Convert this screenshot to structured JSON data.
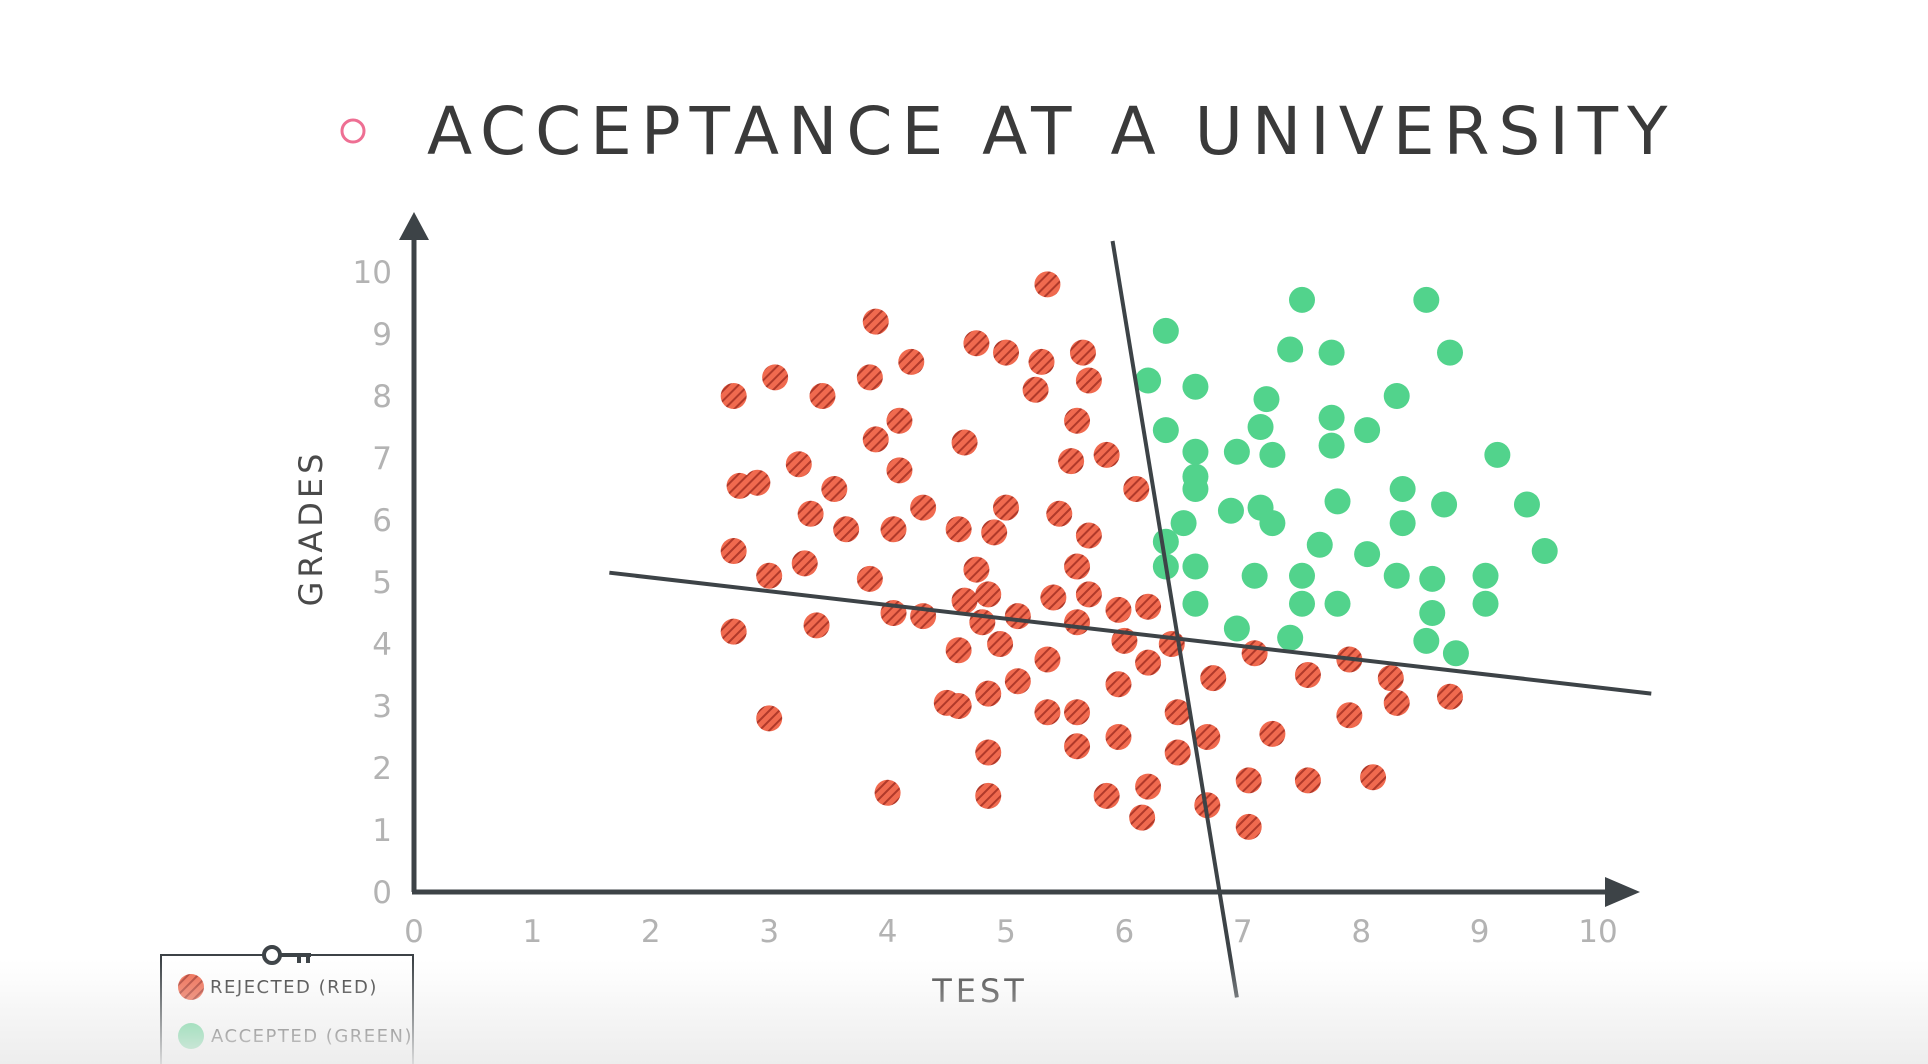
{
  "colors": {
    "rejected": "#f06a4f",
    "rejected_hatch": "#b0392a",
    "accepted": "#52d38c",
    "axis": "#3d4347",
    "bullet": "#ee6f93"
  },
  "chart_data": {
    "type": "scatter",
    "title": "ACCEPTANCE AT A UNIVERSITY",
    "xlabel": "TEST",
    "ylabel": "GRADES",
    "xlim": [
      0,
      10
    ],
    "ylim": [
      0,
      10
    ],
    "x_ticks": [
      "0",
      "1",
      "2",
      "3",
      "4",
      "5",
      "6",
      "7",
      "8",
      "9",
      "10"
    ],
    "y_ticks": [
      "0",
      "1",
      "2",
      "3",
      "4",
      "5",
      "6",
      "7",
      "8",
      "9",
      "10"
    ],
    "grid": false,
    "legend_position": "bottom-left",
    "legend": [
      {
        "label": "REJECTED (RED)",
        "series": "rejected"
      },
      {
        "label": "ACCEPTED (GREEN)",
        "series": "accepted"
      }
    ],
    "boundary_lines": [
      {
        "from": [
          1.65,
          5.15
        ],
        "to": [
          10.45,
          3.2
        ]
      },
      {
        "from": [
          5.9,
          10.5
        ],
        "to": [
          6.95,
          -1.7
        ]
      }
    ],
    "series": [
      {
        "name": "REJECTED (RED)",
        "key": "rejected",
        "points": [
          [
            2.7,
            8.0
          ],
          [
            3.05,
            8.3
          ],
          [
            3.45,
            8.0
          ],
          [
            3.9,
            9.2
          ],
          [
            3.85,
            8.3
          ],
          [
            4.2,
            8.55
          ],
          [
            4.1,
            7.6
          ],
          [
            3.9,
            7.3
          ],
          [
            3.25,
            6.9
          ],
          [
            2.75,
            6.55
          ],
          [
            2.9,
            6.6
          ],
          [
            3.55,
            6.5
          ],
          [
            4.1,
            6.8
          ],
          [
            3.35,
            6.1
          ],
          [
            3.65,
            5.85
          ],
          [
            2.7,
            5.5
          ],
          [
            3.3,
            5.3
          ],
          [
            3.0,
            5.1
          ],
          [
            3.85,
            5.05
          ],
          [
            2.7,
            4.2
          ],
          [
            3.4,
            4.3
          ],
          [
            3.0,
            2.8
          ],
          [
            4.05,
            5.85
          ],
          [
            4.3,
            6.2
          ],
          [
            4.05,
            4.5
          ],
          [
            4.3,
            4.45
          ],
          [
            4.0,
            1.6
          ],
          [
            4.65,
            7.25
          ],
          [
            4.75,
            8.85
          ],
          [
            5.0,
            8.7
          ],
          [
            5.3,
            8.55
          ],
          [
            5.35,
            9.8
          ],
          [
            5.65,
            8.7
          ],
          [
            5.25,
            8.1
          ],
          [
            5.7,
            8.25
          ],
          [
            5.6,
            7.6
          ],
          [
            5.55,
            6.95
          ],
          [
            5.85,
            7.05
          ],
          [
            6.1,
            6.5
          ],
          [
            5.0,
            6.2
          ],
          [
            5.45,
            6.1
          ],
          [
            4.6,
            5.85
          ],
          [
            4.9,
            5.8
          ],
          [
            5.7,
            5.75
          ],
          [
            4.75,
            5.2
          ],
          [
            5.6,
            5.25
          ],
          [
            4.65,
            4.7
          ],
          [
            4.85,
            4.8
          ],
          [
            4.8,
            4.35
          ],
          [
            5.1,
            4.45
          ],
          [
            5.4,
            4.75
          ],
          [
            5.7,
            4.8
          ],
          [
            5.95,
            4.55
          ],
          [
            6.2,
            4.6
          ],
          [
            5.6,
            4.35
          ],
          [
            4.95,
            4.0
          ],
          [
            4.6,
            3.9
          ],
          [
            5.35,
            3.75
          ],
          [
            6.0,
            4.05
          ],
          [
            6.2,
            3.7
          ],
          [
            6.4,
            4.0
          ],
          [
            5.1,
            3.4
          ],
          [
            5.95,
            3.35
          ],
          [
            6.75,
            3.45
          ],
          [
            4.85,
            3.2
          ],
          [
            4.5,
            3.05
          ],
          [
            4.6,
            3.0
          ],
          [
            5.35,
            2.9
          ],
          [
            5.6,
            2.9
          ],
          [
            6.45,
            2.9
          ],
          [
            5.95,
            2.5
          ],
          [
            6.7,
            2.5
          ],
          [
            4.85,
            2.25
          ],
          [
            5.6,
            2.35
          ],
          [
            6.45,
            2.25
          ],
          [
            4.85,
            1.55
          ],
          [
            5.85,
            1.55
          ],
          [
            6.2,
            1.7
          ],
          [
            6.15,
            1.2
          ],
          [
            6.7,
            1.4
          ],
          [
            7.05,
            1.05
          ],
          [
            7.05,
            1.8
          ],
          [
            7.25,
            2.55
          ],
          [
            7.55,
            1.8
          ],
          [
            7.9,
            2.85
          ],
          [
            8.1,
            1.85
          ],
          [
            8.25,
            3.45
          ],
          [
            8.3,
            3.05
          ],
          [
            7.55,
            3.5
          ],
          [
            7.9,
            3.75
          ],
          [
            7.1,
            3.85
          ],
          [
            8.75,
            3.15
          ]
        ]
      },
      {
        "name": "ACCEPTED (GREEN)",
        "key": "accepted",
        "points": [
          [
            6.35,
            9.05
          ],
          [
            7.5,
            9.55
          ],
          [
            8.55,
            9.55
          ],
          [
            7.4,
            8.75
          ],
          [
            7.75,
            8.7
          ],
          [
            8.75,
            8.7
          ],
          [
            6.2,
            8.25
          ],
          [
            6.6,
            8.15
          ],
          [
            7.2,
            7.95
          ],
          [
            8.3,
            8.0
          ],
          [
            6.35,
            7.45
          ],
          [
            6.6,
            7.1
          ],
          [
            6.95,
            7.1
          ],
          [
            7.15,
            7.5
          ],
          [
            7.25,
            7.05
          ],
          [
            7.75,
            7.65
          ],
          [
            7.75,
            7.2
          ],
          [
            8.05,
            7.45
          ],
          [
            9.15,
            7.05
          ],
          [
            6.6,
            6.7
          ],
          [
            6.6,
            6.5
          ],
          [
            6.9,
            6.15
          ],
          [
            7.15,
            6.2
          ],
          [
            7.25,
            5.95
          ],
          [
            7.8,
            6.3
          ],
          [
            8.35,
            6.5
          ],
          [
            8.7,
            6.25
          ],
          [
            9.4,
            6.25
          ],
          [
            6.5,
            5.95
          ],
          [
            6.35,
            5.65
          ],
          [
            6.35,
            5.25
          ],
          [
            6.6,
            5.25
          ],
          [
            7.65,
            5.6
          ],
          [
            8.05,
            5.45
          ],
          [
            8.35,
            5.95
          ],
          [
            9.55,
            5.5
          ],
          [
            7.1,
            5.1
          ],
          [
            7.5,
            5.1
          ],
          [
            8.3,
            5.1
          ],
          [
            8.6,
            5.05
          ],
          [
            9.05,
            5.1
          ],
          [
            6.6,
            4.65
          ],
          [
            7.5,
            4.65
          ],
          [
            7.8,
            4.65
          ],
          [
            8.6,
            4.5
          ],
          [
            9.05,
            4.65
          ],
          [
            6.95,
            4.25
          ],
          [
            7.4,
            4.1
          ],
          [
            8.55,
            4.05
          ],
          [
            8.8,
            3.85
          ]
        ]
      }
    ]
  }
}
